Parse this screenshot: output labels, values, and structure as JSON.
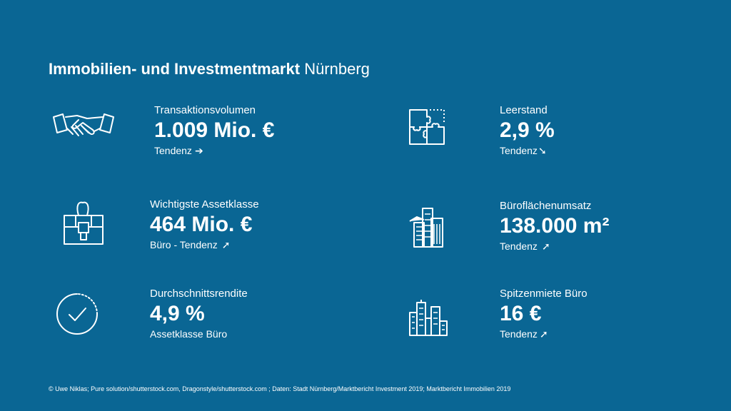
{
  "title": {
    "bold": "Immobilien- und Investmentmarkt",
    "light": "Nürnberg"
  },
  "stats": [
    {
      "label": "Transaktionsvolumen",
      "value": "1.009 Mio. €",
      "sub": "Tendenz",
      "arrow": "➔",
      "icon": "handshake-icon"
    },
    {
      "label": "Leerstand",
      "value": "2,9 %",
      "sub": "Tendenz",
      "arrow": "➘",
      "icon": "puzzle-icon"
    },
    {
      "label": "Wichtigste Assetklasse",
      "value": "464 Mio. €",
      "sub": "Büro - Tendenz",
      "arrow": "➚",
      "icon": "briefcase-icon"
    },
    {
      "label": "Büroflächenumsatz",
      "value": "138.000 m²",
      "sub": "Tendenz",
      "arrow": "➚",
      "icon": "office-building-icon"
    },
    {
      "label": "Durchschnittsrendite",
      "value": "4,9 %",
      "sub": "Assetklasse Büro",
      "arrow": "",
      "icon": "checkmark-circle-icon"
    },
    {
      "label": "Spitzenmiete Büro",
      "value": "16 €",
      "sub": "Tendenz",
      "arrow": "➚",
      "icon": "city-skyline-icon"
    }
  ],
  "footer": "© Uwe Niklas; Pure solution/shutterstock.com, Dragonstyle/shutterstock.com ; Daten: Stadt Nürnberg/Marktbericht Investment 2019; Marktbericht Immobilien 2019",
  "colors": {
    "background": "#0a6694",
    "text": "#ffffff"
  }
}
